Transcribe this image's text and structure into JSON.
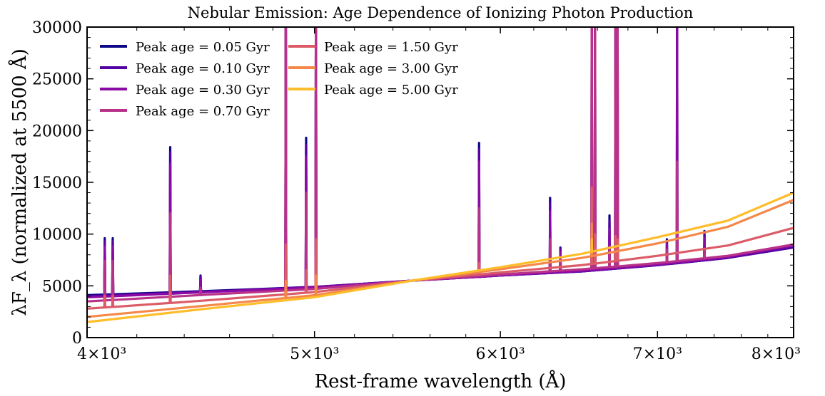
{
  "chart_data": {
    "type": "line",
    "title": "Nebular Emission: Age Dependence of Ionizing Photon Production",
    "xlabel": "Rest-frame wavelength (Å)",
    "ylabel": "λF_λ (normalized at 5500 Å)",
    "xlim": [
      4000,
      8000
    ],
    "ylim": [
      0,
      30000
    ],
    "x_scale": "log",
    "x_ticks": [
      4000,
      5000,
      6000,
      7000,
      8000
    ],
    "x_tick_labels": [
      "4×10³",
      "5×10³",
      "6×10³",
      "7×10³",
      "8×10³"
    ],
    "y_ticks": [
      0,
      5000,
      10000,
      15000,
      20000,
      25000,
      30000
    ],
    "y_tick_labels": [
      "0",
      "5000",
      "10000",
      "15000",
      "20000",
      "25000",
      "30000"
    ],
    "grid": false,
    "legend_placement": "top-left",
    "legend_columns": 2,
    "series": [
      {
        "name": "Peak age = 0.05 Gyr",
        "color": "#0d0887",
        "continuum": [
          [
            4000,
            4100
          ],
          [
            4500,
            4500
          ],
          [
            5000,
            4900
          ],
          [
            5500,
            5500
          ],
          [
            6000,
            6000
          ],
          [
            6500,
            6400
          ],
          [
            7000,
            7000
          ],
          [
            7500,
            7700
          ],
          [
            8000,
            8800
          ]
        ],
        "lines": [
          [
            4070,
            9600
          ],
          [
            4102,
            9600
          ],
          [
            4340,
            18400
          ],
          [
            4471,
            6000
          ],
          [
            4861,
            34000
          ],
          [
            4959,
            19300
          ],
          [
            5007,
            34000
          ],
          [
            5876,
            18800
          ],
          [
            6300,
            13500
          ],
          [
            6364,
            8700
          ],
          [
            6563,
            34000
          ],
          [
            6584,
            34000
          ],
          [
            6678,
            11800
          ],
          [
            6717,
            34000
          ],
          [
            6731,
            34000
          ],
          [
            7065,
            9500
          ],
          [
            7136,
            34000
          ],
          [
            7330,
            10300
          ]
        ]
      },
      {
        "name": "Peak age = 0.10 Gyr",
        "color": "#5302a3",
        "continuum": [
          [
            4000,
            4000
          ],
          [
            4500,
            4450
          ],
          [
            5000,
            4900
          ],
          [
            5500,
            5500
          ],
          [
            6000,
            6000
          ],
          [
            6500,
            6400
          ],
          [
            7000,
            7000
          ],
          [
            7500,
            7700
          ],
          [
            8000,
            8700
          ]
        ],
        "lines": [
          [
            4070,
            9300
          ],
          [
            4102,
            9300
          ],
          [
            4340,
            17900
          ],
          [
            4471,
            5900
          ],
          [
            4861,
            34000
          ],
          [
            4959,
            18600
          ],
          [
            5007,
            34000
          ],
          [
            5876,
            18200
          ],
          [
            6300,
            13000
          ],
          [
            6364,
            8600
          ],
          [
            6563,
            34000
          ],
          [
            6584,
            34000
          ],
          [
            6678,
            11300
          ],
          [
            6717,
            34000
          ],
          [
            6731,
            34000
          ],
          [
            7065,
            9300
          ],
          [
            7136,
            34000
          ],
          [
            7330,
            10000
          ]
        ]
      },
      {
        "name": "Peak age = 0.30 Gyr",
        "color": "#8b0aa5",
        "continuum": [
          [
            4000,
            3900
          ],
          [
            4500,
            4400
          ],
          [
            5000,
            4850
          ],
          [
            5500,
            5500
          ],
          [
            6000,
            6000
          ],
          [
            6500,
            6450
          ],
          [
            7000,
            7050
          ],
          [
            7500,
            7800
          ],
          [
            8000,
            8900
          ]
        ],
        "lines": [
          [
            4070,
            8800
          ],
          [
            4102,
            8800
          ],
          [
            4340,
            16800
          ],
          [
            4471,
            5600
          ],
          [
            4861,
            34000
          ],
          [
            4959,
            17500
          ],
          [
            5007,
            34000
          ],
          [
            5876,
            17000
          ],
          [
            6300,
            12200
          ],
          [
            6364,
            8300
          ],
          [
            6563,
            34000
          ],
          [
            6584,
            34000
          ],
          [
            6678,
            10500
          ],
          [
            6717,
            34000
          ],
          [
            6731,
            34000
          ],
          [
            7065,
            9000
          ],
          [
            7136,
            34000
          ],
          [
            7330,
            9600
          ]
        ]
      },
      {
        "name": "Peak age = 0.70 Gyr",
        "color": "#b83289",
        "continuum": [
          [
            4000,
            3500
          ],
          [
            4500,
            4150
          ],
          [
            5000,
            4700
          ],
          [
            5500,
            5500
          ],
          [
            6000,
            6100
          ],
          [
            6500,
            6600
          ],
          [
            7000,
            7200
          ],
          [
            7500,
            7900
          ],
          [
            8000,
            9000
          ]
        ],
        "lines": [
          [
            4070,
            7400
          ],
          [
            4102,
            7400
          ],
          [
            4340,
            12000
          ],
          [
            4471,
            4800
          ],
          [
            4861,
            34000
          ],
          [
            4959,
            14000
          ],
          [
            5007,
            34000
          ],
          [
            5876,
            12500
          ],
          [
            6300,
            9500
          ],
          [
            6364,
            7500
          ],
          [
            6563,
            34000
          ],
          [
            6584,
            34000
          ],
          [
            6678,
            8800
          ],
          [
            6717,
            34000
          ],
          [
            6731,
            34000
          ],
          [
            7065,
            8500
          ],
          [
            7136,
            17000
          ],
          [
            7330,
            8500
          ]
        ]
      },
      {
        "name": "Peak age = 1.50 Gyr",
        "color": "#db5c68",
        "continuum": [
          [
            4000,
            2800
          ],
          [
            4500,
            3600
          ],
          [
            5000,
            4400
          ],
          [
            5500,
            5500
          ],
          [
            6000,
            6300
          ],
          [
            6500,
            7000
          ],
          [
            7000,
            7900
          ],
          [
            7500,
            8900
          ],
          [
            8000,
            10600
          ]
        ],
        "lines": [
          [
            4070,
            4000
          ],
          [
            4102,
            4000
          ],
          [
            4340,
            6000
          ],
          [
            4861,
            9000
          ],
          [
            4959,
            6500
          ],
          [
            5007,
            9500
          ],
          [
            5876,
            7200
          ],
          [
            6563,
            14500
          ],
          [
            6584,
            10000
          ],
          [
            6717,
            9800
          ],
          [
            6731,
            9500
          ]
        ]
      },
      {
        "name": "Peak age = 3.00 Gyr",
        "color": "#f48849",
        "continuum": [
          [
            4000,
            2000
          ],
          [
            4500,
            3100
          ],
          [
            5000,
            4100
          ],
          [
            5500,
            5500
          ],
          [
            6000,
            6600
          ],
          [
            6500,
            7700
          ],
          [
            7000,
            9100
          ],
          [
            7500,
            10700
          ],
          [
            8000,
            13300
          ]
        ],
        "lines": [
          [
            4861,
            5500
          ],
          [
            5007,
            6000
          ],
          [
            6563,
            11000
          ]
        ]
      },
      {
        "name": "Peak age = 5.00 Gyr",
        "color": "#febd2a",
        "continuum": [
          [
            4000,
            1500
          ],
          [
            4500,
            2800
          ],
          [
            5000,
            3900
          ],
          [
            5500,
            5500
          ],
          [
            6000,
            6800
          ],
          [
            6500,
            8100
          ],
          [
            7000,
            9700
          ],
          [
            7500,
            11300
          ],
          [
            8000,
            14000
          ]
        ],
        "lines": [
          [
            6563,
            9500
          ]
        ]
      }
    ]
  }
}
